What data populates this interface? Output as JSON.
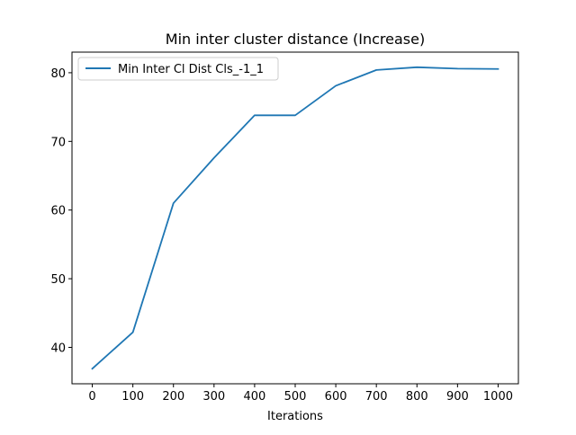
{
  "chart_data": {
    "type": "line",
    "title": "Min inter cluster distance (Increase)",
    "xlabel": "Iterations",
    "ylabel": "",
    "x": [
      0,
      100,
      200,
      300,
      400,
      500,
      600,
      700,
      800,
      900,
      1000
    ],
    "series": [
      {
        "name": "Min Inter Cl Dist Cls_-1_1",
        "color": "#1f77b4",
        "values": [
          36.9,
          42.2,
          61.0,
          67.6,
          73.8,
          73.8,
          78.1,
          80.4,
          80.8,
          80.6,
          80.55
        ]
      }
    ],
    "xlim": [
      -50,
      1050
    ],
    "ylim": [
      34.7,
      83.0
    ],
    "xticks": [
      0,
      100,
      200,
      300,
      400,
      500,
      600,
      700,
      800,
      900,
      1000
    ],
    "yticks": [
      40,
      50,
      60,
      70,
      80
    ],
    "grid": false,
    "legend_position": "top-left"
  }
}
